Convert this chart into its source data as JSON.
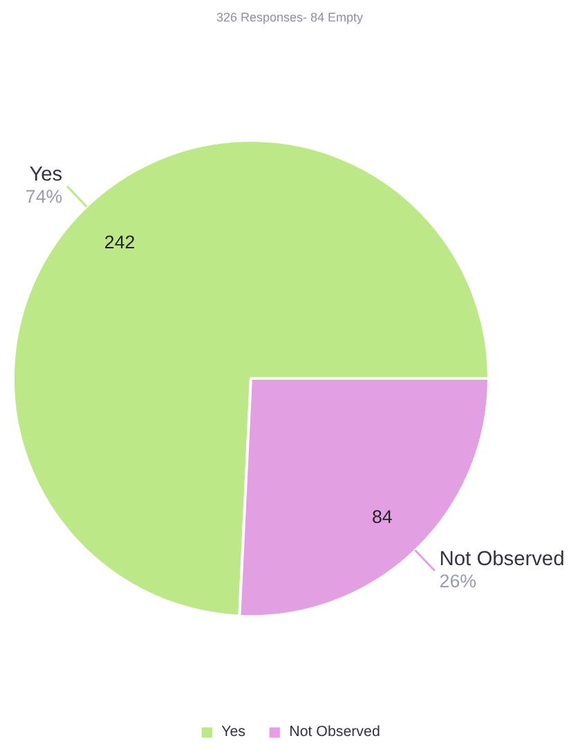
{
  "chart_data": {
    "type": "pie",
    "title": "326 Responses- 84 Empty",
    "categories": [
      "Yes",
      "Not Observed"
    ],
    "values": [
      242,
      84
    ],
    "colors": [
      "#bde887",
      "#e2a0e2"
    ],
    "data_labels": true,
    "annotations": [
      "74%",
      "26%"
    ],
    "legend": "bottom"
  }
}
